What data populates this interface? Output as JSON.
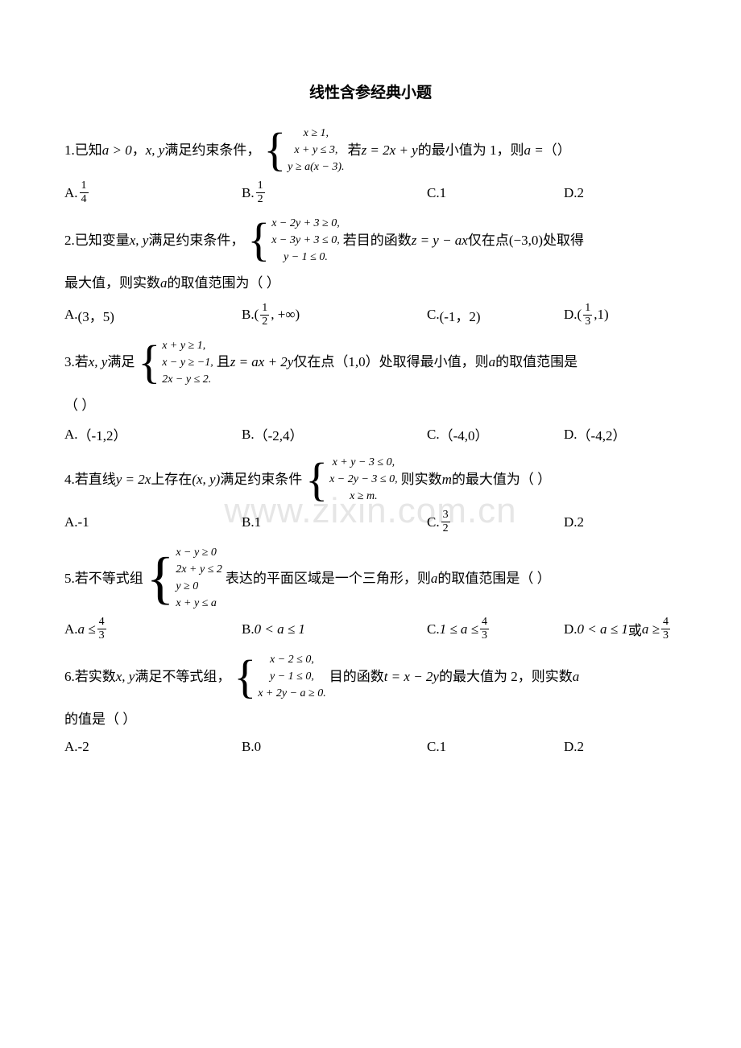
{
  "title": "线性含参经典小题",
  "watermark": "www.zixin.com.cn",
  "problems": [
    {
      "num": "1.",
      "pre": "已知",
      "cond_a": "a > 0",
      "mid1": "，",
      "xy": "x, y",
      "mid2": "满足约束条件，",
      "brace": [
        "x ≥ 1,",
        "x + y ≤ 3,",
        "y ≥ a(x − 3)."
      ],
      "brace_align": "center",
      "post1": "若",
      "z": "z = 2x + y",
      "post2": "的最小值为 1，则",
      "aeq": "a =",
      "paren": "（）",
      "opts": {
        "A": {
          "label": "A.",
          "frac": [
            "1",
            "4"
          ]
        },
        "B": {
          "label": "B.",
          "frac": [
            "1",
            "2"
          ]
        },
        "C": {
          "label": "C.",
          "text": "1"
        },
        "D": {
          "label": "D.",
          "text": "2"
        }
      }
    },
    {
      "num": "2.",
      "pre": "已知变量",
      "xy": "x, y",
      "mid2": "满足约束条件，",
      "brace": [
        "x − 2y + 3 ≥ 0,",
        "x − 3y + 3 ≤ 0,",
        "y − 1 ≤ 0."
      ],
      "brace_align": "left",
      "post1": "若目的函数",
      "z": "z = y − ax",
      "post2": "仅在点",
      "pt": "(−3,0)",
      "post3": "处取得",
      "line2": "最大值，则实数",
      "avar": "a",
      "line2b": "的取值范围为（ ）",
      "opts": {
        "A": {
          "label": "A. ",
          "text": "(3，5)"
        },
        "B": {
          "label": "B.",
          "text_pre": "(",
          "frac": [
            "1",
            "2"
          ],
          "text_post": ", +∞)"
        },
        "C": {
          "label": "C.",
          "text": "(-1，2)"
        },
        "D": {
          "label": "D.",
          "text_pre": "(",
          "frac": [
            "1",
            "3"
          ],
          "text_post": ",1)"
        }
      }
    },
    {
      "num": "3.",
      "pre": "若",
      "xy": "x, y",
      "mid2": "满足",
      "brace": [
        "x + y ≥ 1,",
        "x − y ≥ −1,",
        "2x − y ≤ 2."
      ],
      "brace_align": "left",
      "post1": "且",
      "z": "z = ax + 2y",
      "post2": "仅在点（1,0）处取得最小值，则 ",
      "avar": "a",
      "post3": " 的取值范围是",
      "line2": "（ ）",
      "opts": {
        "A": {
          "label": "A. ",
          "text": "（-1,2）"
        },
        "B": {
          "label": "B. ",
          "text": "（-2,4）"
        },
        "C": {
          "label": "C. ",
          "text": "（-4,0）"
        },
        "D": {
          "label": "D. ",
          "text": "（-4,2）"
        }
      }
    },
    {
      "num": "4.",
      "pre": "若直线",
      "line": "y = 2x",
      "mid1": "上存在",
      "xy": "(x, y)",
      "mid2": "满足约束条件",
      "brace": [
        "x + y − 3 ≤ 0,",
        "x − 2y − 3 ≤ 0,",
        "x ≥ m."
      ],
      "brace_align": "center",
      "post1": "则实数 ",
      "mvar": "m",
      "post2": " 的最大值为（ ）",
      "opts": {
        "A": {
          "label": "A.",
          "text": "-1"
        },
        "B": {
          "label": "B.",
          "text": "1"
        },
        "C": {
          "label": "C.",
          "frac": [
            "3",
            "2"
          ]
        },
        "D": {
          "label": "D.",
          "text": "2"
        }
      }
    },
    {
      "num": "5.",
      "pre": "若不等式组",
      "brace": [
        "x − y ≥ 0",
        "2x + y ≤ 2",
        "y ≥ 0",
        "x + y ≤ a"
      ],
      "brace_align": "left",
      "post1": "表达的平面区域是一个三角形，则 ",
      "avar": "a",
      "post2": " 的取值范围是（ ）",
      "opts": {
        "A": {
          "label": "A. ",
          "tm": "a ≤ ",
          "frac": [
            "4",
            "3"
          ]
        },
        "B": {
          "label": "B. ",
          "tm": "0 < a ≤ 1"
        },
        "C": {
          "label": "C. ",
          "tm": "1 ≤ a ≤ ",
          "frac": [
            "4",
            "3"
          ]
        },
        "D": {
          "label": "D. ",
          "tm": "0 < a ≤ 1",
          "cn": "或",
          "tm2": "a ≥ ",
          "frac": [
            "4",
            "3"
          ]
        }
      }
    },
    {
      "num": "6.",
      "pre": "若实数",
      "xy": "x, y",
      "mid2": "满足不等式组，",
      "brace": [
        "x − 2 ≤ 0,",
        "y − 1 ≤ 0,",
        "x + 2y − a ≥ 0."
      ],
      "brace_align": "center",
      "post1": "目的函数",
      "z": "t = x − 2y",
      "post2": "的最大值为 2，则实数 ",
      "avar": "a",
      "line2": "的值是（ ）",
      "opts": {
        "A": {
          "label": "A.",
          "text": "-2"
        },
        "B": {
          "label": "B.",
          "text": "0"
        },
        "C": {
          "label": "C.",
          "text": "1"
        },
        "D": {
          "label": "D.",
          "text": "2"
        }
      }
    }
  ]
}
